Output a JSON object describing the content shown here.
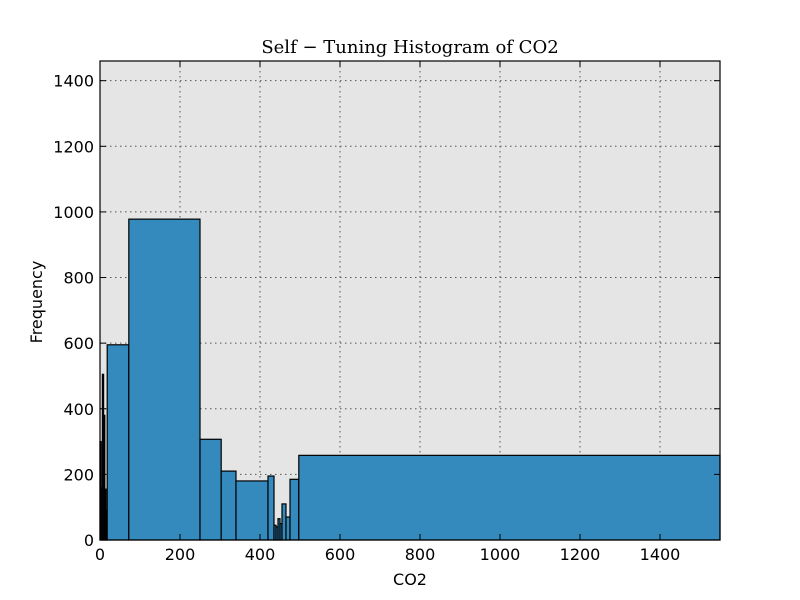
{
  "chart_data": {
    "type": "bar",
    "title": "Self − Tuning Histogram of CO2",
    "xlabel": "CO2",
    "ylabel": "Frequency",
    "xlim": [
      0,
      1550
    ],
    "ylim": [
      0,
      1460
    ],
    "xticks": [
      0,
      200,
      400,
      600,
      800,
      1000,
      1200,
      1400
    ],
    "yticks": [
      0,
      200,
      400,
      600,
      800,
      1000,
      1200,
      1400
    ],
    "grid": true,
    "background": "#e5e5e5",
    "bar_color": "#348abd",
    "bins": [
      {
        "x0": 0,
        "x1": 3,
        "count": 300
      },
      {
        "x0": 3,
        "x1": 6,
        "count": 160
      },
      {
        "x0": 6,
        "x1": 9,
        "count": 505
      },
      {
        "x0": 9,
        "x1": 12,
        "count": 380
      },
      {
        "x0": 12,
        "x1": 15,
        "count": 155
      },
      {
        "x0": 15,
        "x1": 18,
        "count": 90
      },
      {
        "x0": 18,
        "x1": 72,
        "count": 595
      },
      {
        "x0": 72,
        "x1": 250,
        "count": 978
      },
      {
        "x0": 250,
        "x1": 303,
        "count": 307
      },
      {
        "x0": 303,
        "x1": 340,
        "count": 210
      },
      {
        "x0": 340,
        "x1": 420,
        "count": 180
      },
      {
        "x0": 420,
        "x1": 435,
        "count": 195
      },
      {
        "x0": 435,
        "x1": 440,
        "count": 45
      },
      {
        "x0": 440,
        "x1": 445,
        "count": 40
      },
      {
        "x0": 445,
        "x1": 450,
        "count": 65
      },
      {
        "x0": 450,
        "x1": 455,
        "count": 50
      },
      {
        "x0": 455,
        "x1": 465,
        "count": 110
      },
      {
        "x0": 465,
        "x1": 475,
        "count": 70
      },
      {
        "x0": 475,
        "x1": 497,
        "count": 185
      },
      {
        "x0": 497,
        "x1": 1550,
        "count": 258
      }
    ]
  }
}
